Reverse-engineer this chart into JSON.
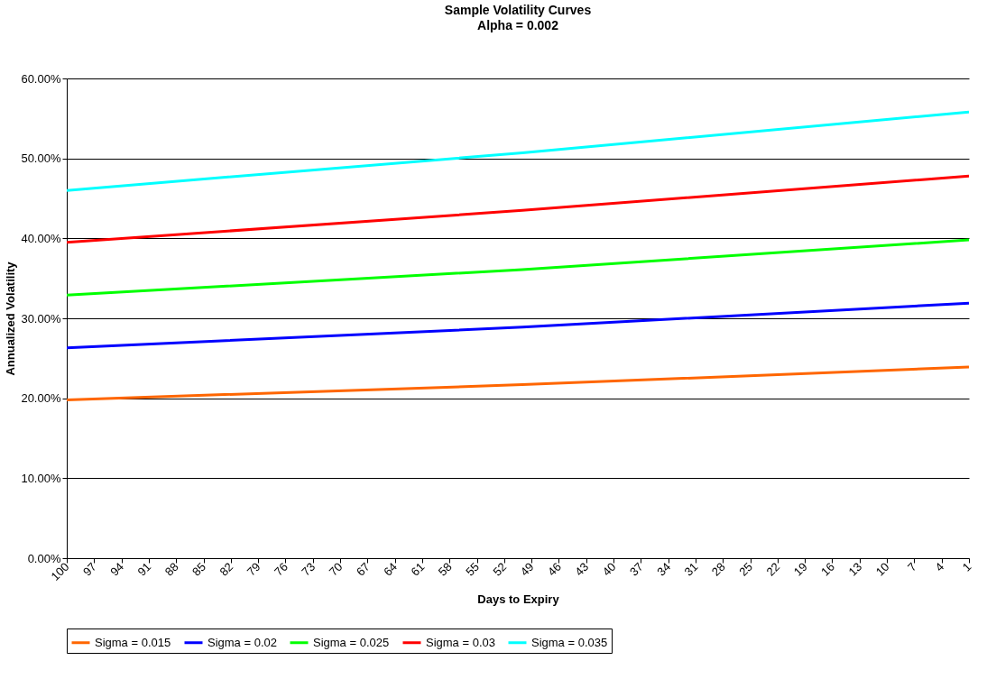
{
  "chart_data": {
    "type": "line",
    "title": "Sample Volatility Curves",
    "subtitle": "Alpha = 0.002",
    "xlabel": "Days to Expiry",
    "ylabel": "Annualized Volatility",
    "xlim": [
      100,
      1
    ],
    "xticks": [
      100,
      97,
      94,
      91,
      88,
      85,
      82,
      79,
      76,
      73,
      70,
      67,
      64,
      61,
      58,
      55,
      52,
      49,
      46,
      43,
      40,
      37,
      34,
      31,
      28,
      25,
      22,
      19,
      16,
      13,
      10,
      7,
      4,
      1
    ],
    "ylim": [
      0,
      60
    ],
    "yticks": [
      {
        "value": 0,
        "label": "0.00%"
      },
      {
        "value": 10,
        "label": "10.00%"
      },
      {
        "value": 20,
        "label": "20.00%"
      },
      {
        "value": 30,
        "label": "30.00%"
      },
      {
        "value": 40,
        "label": "40.00%"
      },
      {
        "value": 50,
        "label": "50.00%"
      },
      {
        "value": 60,
        "label": "60.00%"
      }
    ],
    "x": [
      100,
      50,
      1
    ],
    "series": [
      {
        "name": "Sigma = 0.015",
        "color": "#ff6600",
        "values": [
          19.8,
          21.7,
          23.9
        ]
      },
      {
        "name": "Sigma = 0.02",
        "color": "#0000ff",
        "values": [
          26.3,
          28.9,
          31.9
        ]
      },
      {
        "name": "Sigma = 0.025",
        "color": "#00ff00",
        "values": [
          32.9,
          36.1,
          39.8
        ]
      },
      {
        "name": "Sigma = 0.03",
        "color": "#ff0000",
        "values": [
          39.5,
          43.5,
          47.8
        ]
      },
      {
        "name": "Sigma = 0.035",
        "color": "#00ffff",
        "values": [
          46.0,
          50.7,
          55.8
        ]
      }
    ],
    "grid": "y",
    "legend": "bottom",
    "marker": "none",
    "line_style": "solid"
  }
}
